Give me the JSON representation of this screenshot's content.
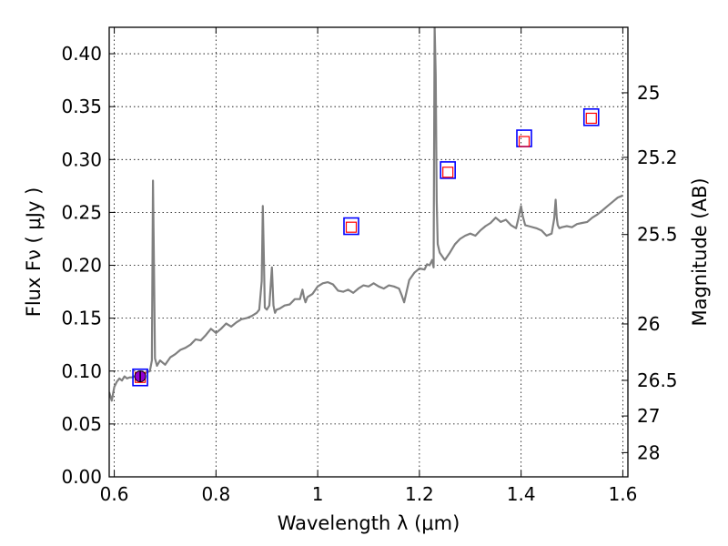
{
  "chart_data": {
    "type": "line",
    "xlabel": "Wavelength  λ (μm)",
    "ylabel": "Flux  Fν  ( μJy )",
    "y2label": "Magnitude (AB)",
    "xlim": [
      0.59,
      1.61
    ],
    "ylim": [
      0.0,
      0.425
    ],
    "grid": true,
    "grid_style": "dotted",
    "x_ticks": [
      {
        "value": 0.6,
        "label": "0.6"
      },
      {
        "value": 0.8,
        "label": "0.8"
      },
      {
        "value": 1.0,
        "label": "1"
      },
      {
        "value": 1.2,
        "label": "1.2"
      },
      {
        "value": 1.4,
        "label": "1.4"
      },
      {
        "value": 1.6,
        "label": "1.6"
      }
    ],
    "y_ticks": [
      {
        "value": 0.0,
        "label": "0.00"
      },
      {
        "value": 0.05,
        "label": "0.05"
      },
      {
        "value": 0.1,
        "label": "0.10"
      },
      {
        "value": 0.15,
        "label": "0.15"
      },
      {
        "value": 0.2,
        "label": "0.20"
      },
      {
        "value": 0.25,
        "label": "0.25"
      },
      {
        "value": 0.3,
        "label": "0.30"
      },
      {
        "value": 0.35,
        "label": "0.35"
      },
      {
        "value": 0.4,
        "label": "0.40"
      }
    ],
    "y2_ticks": [
      {
        "mag": 25,
        "label": "25"
      },
      {
        "mag": 25.2,
        "label": "25.2"
      },
      {
        "mag": 25.5,
        "label": "25.5"
      },
      {
        "mag": 26,
        "label": "26"
      },
      {
        "mag": 26.5,
        "label": "26.5"
      },
      {
        "mag": 27,
        "label": "27"
      },
      {
        "mag": 28,
        "label": "28"
      }
    ],
    "series": [
      {
        "kind": "spectrum",
        "color": "#808080",
        "x": [
          0.59,
          0.595,
          0.6,
          0.605,
          0.61,
          0.615,
          0.62,
          0.625,
          0.63,
          0.635,
          0.64,
          0.645,
          0.65,
          0.655,
          0.66,
          0.665,
          0.67,
          0.674,
          0.676,
          0.678,
          0.68,
          0.684,
          0.69,
          0.7,
          0.71,
          0.72,
          0.73,
          0.74,
          0.75,
          0.76,
          0.77,
          0.78,
          0.79,
          0.8,
          0.81,
          0.82,
          0.83,
          0.84,
          0.85,
          0.86,
          0.87,
          0.88,
          0.885,
          0.89,
          0.892,
          0.894,
          0.896,
          0.9,
          0.905,
          0.91,
          0.913,
          0.916,
          0.919,
          0.925,
          0.935,
          0.945,
          0.955,
          0.965,
          0.97,
          0.973,
          0.976,
          0.98,
          0.99,
          1.0,
          1.01,
          1.02,
          1.03,
          1.04,
          1.05,
          1.06,
          1.07,
          1.08,
          1.09,
          1.1,
          1.11,
          1.12,
          1.13,
          1.14,
          1.15,
          1.16,
          1.165,
          1.17,
          1.18,
          1.19,
          1.2,
          1.21,
          1.215,
          1.22,
          1.225,
          1.228,
          1.23,
          1.232,
          1.234,
          1.236,
          1.24,
          1.25,
          1.26,
          1.27,
          1.28,
          1.29,
          1.3,
          1.31,
          1.32,
          1.33,
          1.34,
          1.35,
          1.36,
          1.37,
          1.38,
          1.39,
          1.395,
          1.398,
          1.4,
          1.403,
          1.408,
          1.415,
          1.43,
          1.44,
          1.45,
          1.46,
          1.465,
          1.468,
          1.47,
          1.472,
          1.475,
          1.48,
          1.49,
          1.5,
          1.51,
          1.52,
          1.53,
          1.54,
          1.55,
          1.56,
          1.57,
          1.58,
          1.59,
          1.6
        ],
        "y": [
          0.08,
          0.072,
          0.085,
          0.09,
          0.093,
          0.091,
          0.095,
          0.093,
          0.094,
          0.094,
          0.095,
          0.096,
          0.095,
          0.097,
          0.098,
          0.099,
          0.1,
          0.11,
          0.28,
          0.2,
          0.112,
          0.105,
          0.11,
          0.106,
          0.113,
          0.116,
          0.12,
          0.122,
          0.125,
          0.13,
          0.129,
          0.134,
          0.14,
          0.136,
          0.14,
          0.145,
          0.142,
          0.146,
          0.149,
          0.15,
          0.152,
          0.155,
          0.158,
          0.185,
          0.256,
          0.21,
          0.16,
          0.158,
          0.162,
          0.198,
          0.162,
          0.155,
          0.158,
          0.159,
          0.162,
          0.163,
          0.168,
          0.168,
          0.177,
          0.17,
          0.165,
          0.17,
          0.173,
          0.18,
          0.183,
          0.184,
          0.182,
          0.176,
          0.175,
          0.177,
          0.174,
          0.178,
          0.181,
          0.18,
          0.183,
          0.18,
          0.178,
          0.181,
          0.18,
          0.178,
          0.172,
          0.165,
          0.186,
          0.193,
          0.197,
          0.196,
          0.201,
          0.2,
          0.205,
          0.198,
          0.427,
          0.38,
          0.26,
          0.22,
          0.212,
          0.205,
          0.212,
          0.22,
          0.225,
          0.228,
          0.23,
          0.228,
          0.233,
          0.237,
          0.24,
          0.245,
          0.241,
          0.243,
          0.238,
          0.235,
          0.245,
          0.252,
          0.256,
          0.247,
          0.238,
          0.237,
          0.235,
          0.233,
          0.228,
          0.23,
          0.244,
          0.262,
          0.245,
          0.238,
          0.235,
          0.236,
          0.237,
          0.236,
          0.239,
          0.24,
          0.241,
          0.245,
          0.248,
          0.252,
          0.256,
          0.26,
          0.264,
          0.266
        ]
      },
      {
        "kind": "photometry-blue",
        "color": "#0000ff",
        "x": [
          0.651,
          1.066,
          1.256,
          1.406,
          1.538
        ],
        "y": [
          0.094,
          0.237,
          0.29,
          0.32,
          0.34
        ]
      },
      {
        "kind": "photometry-red",
        "color": "#ff0000",
        "x": [
          0.651,
          1.066,
          1.256,
          1.406,
          1.538
        ],
        "y": [
          0.094,
          0.236,
          0.288,
          0.317,
          0.339
        ]
      },
      {
        "kind": "observed",
        "color": "#9400d3",
        "x": [
          0.651
        ],
        "y": [
          0.095
        ],
        "yerr": [
          0.005
        ]
      }
    ]
  }
}
